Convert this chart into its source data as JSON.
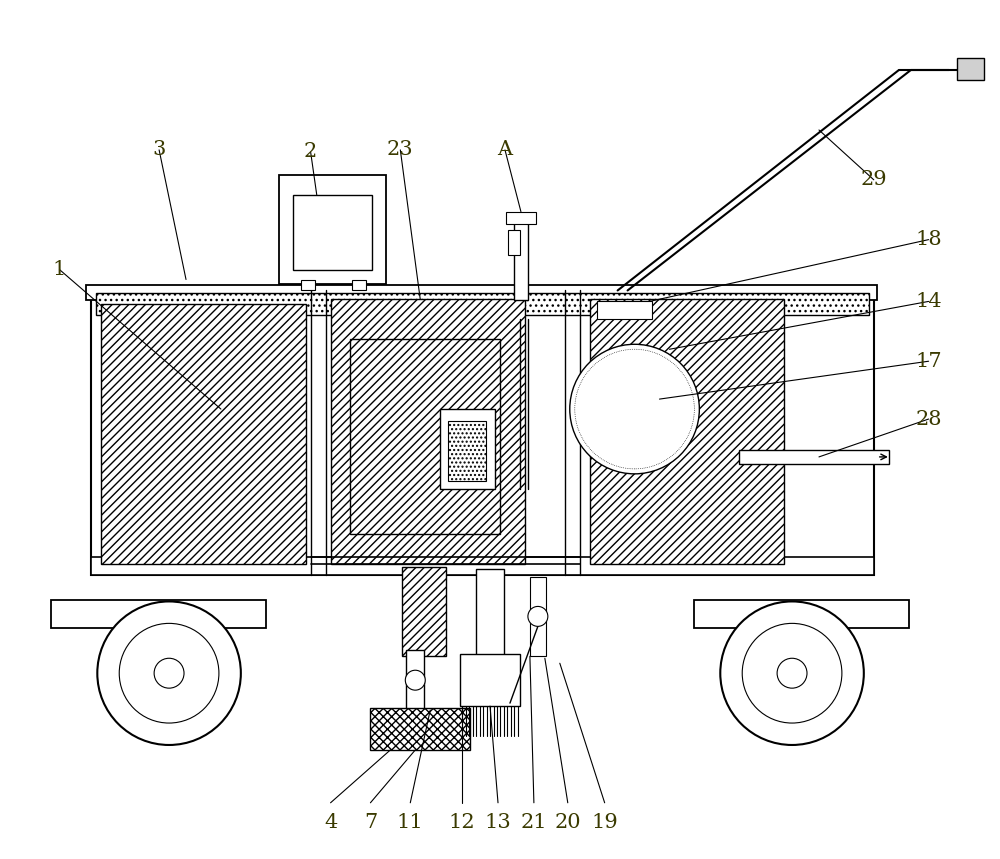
{
  "bg_color": "#ffffff",
  "line_color": "#000000",
  "label_color": "#3a3a00",
  "fig_width": 10.0,
  "fig_height": 8.59
}
